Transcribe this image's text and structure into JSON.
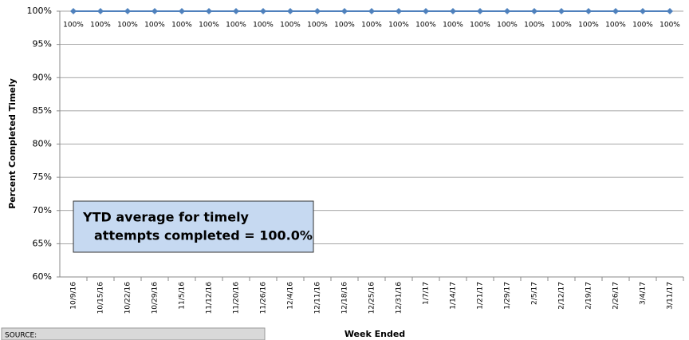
{
  "chart_data": {
    "type": "line",
    "y_axis_label": "Percent Completed Timely",
    "x_axis_label": "Week Ended",
    "categories": [
      "10/9/16",
      "10/15/16",
      "10/22/16",
      "10/29/16",
      "11/5/16",
      "11/12/16",
      "11/20/16",
      "11/26/16",
      "12/4/16",
      "12/11/16",
      "12/18/16",
      "12/25/16",
      "12/31/16",
      "1/7/17",
      "1/14/17",
      "1/21/17",
      "1/29/17",
      "2/5/17",
      "2/12/17",
      "2/19/17",
      "2/26/17",
      "3/4/17",
      "3/11/17"
    ],
    "series": [
      {
        "color": "#4f81bd",
        "values": [
          100,
          100,
          100,
          100,
          100,
          100,
          100,
          100,
          100,
          100,
          100,
          100,
          100,
          100,
          100,
          100,
          100,
          100,
          100,
          100,
          100,
          100,
          100
        ],
        "value_labels": [
          "100%",
          "100%",
          "100%",
          "100%",
          "100%",
          "100%",
          "100%",
          "100%",
          "100%",
          "100%",
          "100%",
          "100%",
          "100%",
          "100%",
          "100%",
          "100%",
          "100%",
          "100%",
          "100%",
          "100%",
          "100%",
          "100%",
          "100%"
        ]
      }
    ],
    "ylim": [
      60,
      100
    ],
    "yticks": [
      {
        "value": 60,
        "label": "60%"
      },
      {
        "value": 65,
        "label": "65%"
      },
      {
        "value": 70,
        "label": "70%"
      },
      {
        "value": 75,
        "label": "75%"
      },
      {
        "value": 80,
        "label": "80%"
      },
      {
        "value": 85,
        "label": "85%"
      },
      {
        "value": 90,
        "label": "90%"
      },
      {
        "value": 95,
        "label": "95%"
      },
      {
        "value": 100,
        "label": "100%"
      }
    ],
    "grid": true,
    "annotation": [
      "YTD average for timely",
      "attempts completed = 100.0%"
    ],
    "source": "SOURCE:"
  }
}
